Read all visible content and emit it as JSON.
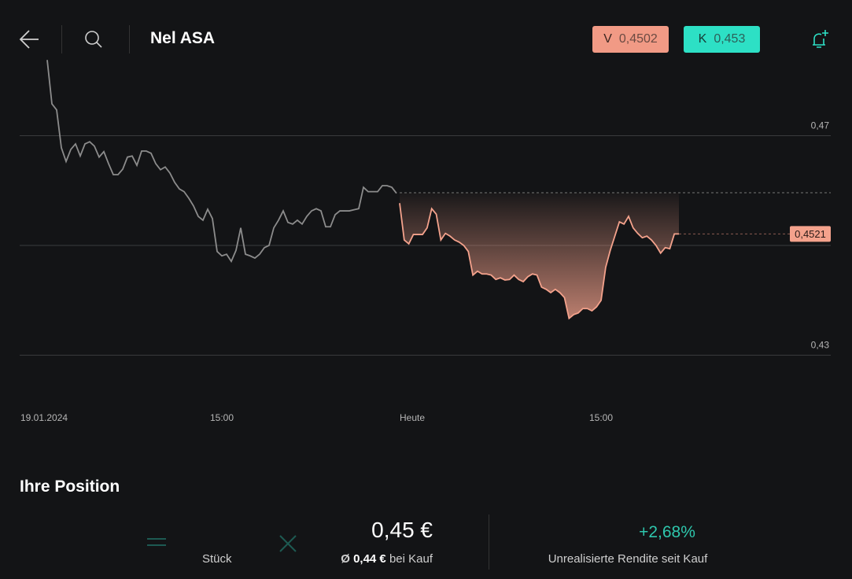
{
  "header": {
    "title": "Nel ASA",
    "sell": {
      "label": "V",
      "price": "0,4502"
    },
    "buy": {
      "label": "K",
      "price": "0,453"
    }
  },
  "chart": {
    "type": "line",
    "categories": [
      "19.01.2024",
      "15:00",
      "Heute",
      "15:00"
    ],
    "ylim": [
      0.426,
      0.484
    ],
    "yticks": [
      {
        "value": 0.47,
        "label": "0,47"
      },
      {
        "value": 0.45,
        "label": null
      },
      {
        "value": 0.43,
        "label": "0,43"
      }
    ],
    "reference": 0.4596,
    "current": {
      "value": 0.4521,
      "label": "0,4521"
    },
    "series": [
      {
        "color": "#8c8c8c",
        "values": [
          0.4838,
          0.4758,
          0.4747,
          0.4678,
          0.4653,
          0.4675,
          0.4685,
          0.4663,
          0.4685,
          0.4689,
          0.4681,
          0.4661,
          0.4671,
          0.4649,
          0.4629,
          0.4629,
          0.4639,
          0.4661,
          0.4663,
          0.4646,
          0.4672,
          0.4672,
          0.4668,
          0.4649,
          0.4638,
          0.4643,
          0.4632,
          0.4615,
          0.4603,
          0.4598,
          0.4586,
          0.4572,
          0.4553,
          0.4546,
          0.4566,
          0.4549,
          0.4489,
          0.4481,
          0.4484,
          0.4471,
          0.4491,
          0.4532,
          0.4484,
          0.4481,
          0.4477,
          0.4484,
          0.4496,
          0.45,
          0.4532,
          0.4546,
          0.4563,
          0.4542,
          0.4539,
          0.4546,
          0.4539,
          0.4553,
          0.4563,
          0.4567,
          0.4563,
          0.4534,
          0.4534,
          0.4556,
          0.4563,
          0.4563,
          0.4563,
          0.4565,
          0.4567,
          0.4606,
          0.4598,
          0.4598,
          0.4598,
          0.4609,
          0.4609,
          0.4606,
          0.4595
        ]
      },
      {
        "color": "#f4a28c",
        "values": [
          0.4577,
          0.451,
          0.4503,
          0.452,
          0.452,
          0.452,
          0.4532,
          0.4567,
          0.4557,
          0.451,
          0.4522,
          0.4517,
          0.451,
          0.4506,
          0.45,
          0.4489,
          0.4446,
          0.4453,
          0.4448,
          0.4448,
          0.4446,
          0.4438,
          0.4441,
          0.4437,
          0.4438,
          0.4446,
          0.4438,
          0.4434,
          0.4443,
          0.4448,
          0.4446,
          0.4424,
          0.442,
          0.4414,
          0.442,
          0.4414,
          0.4405,
          0.4367,
          0.4374,
          0.4377,
          0.4385,
          0.4385,
          0.4381,
          0.4388,
          0.44,
          0.446,
          0.4491,
          0.4517,
          0.4543,
          0.4539,
          0.4553,
          0.4532,
          0.4522,
          0.4514,
          0.4517,
          0.451,
          0.45,
          0.4486,
          0.4496,
          0.4494,
          0.4521,
          0.4521
        ]
      }
    ]
  },
  "position": {
    "title": "Ihre Position",
    "quantity_label": "Stück",
    "price": "0,45 €",
    "avg_symbol": "Ø",
    "avg_price": "0,44 €",
    "avg_suffix": "bei Kauf",
    "return": "+2,68%",
    "return_label": "Unrealisierte Rendite seit Kauf"
  }
}
